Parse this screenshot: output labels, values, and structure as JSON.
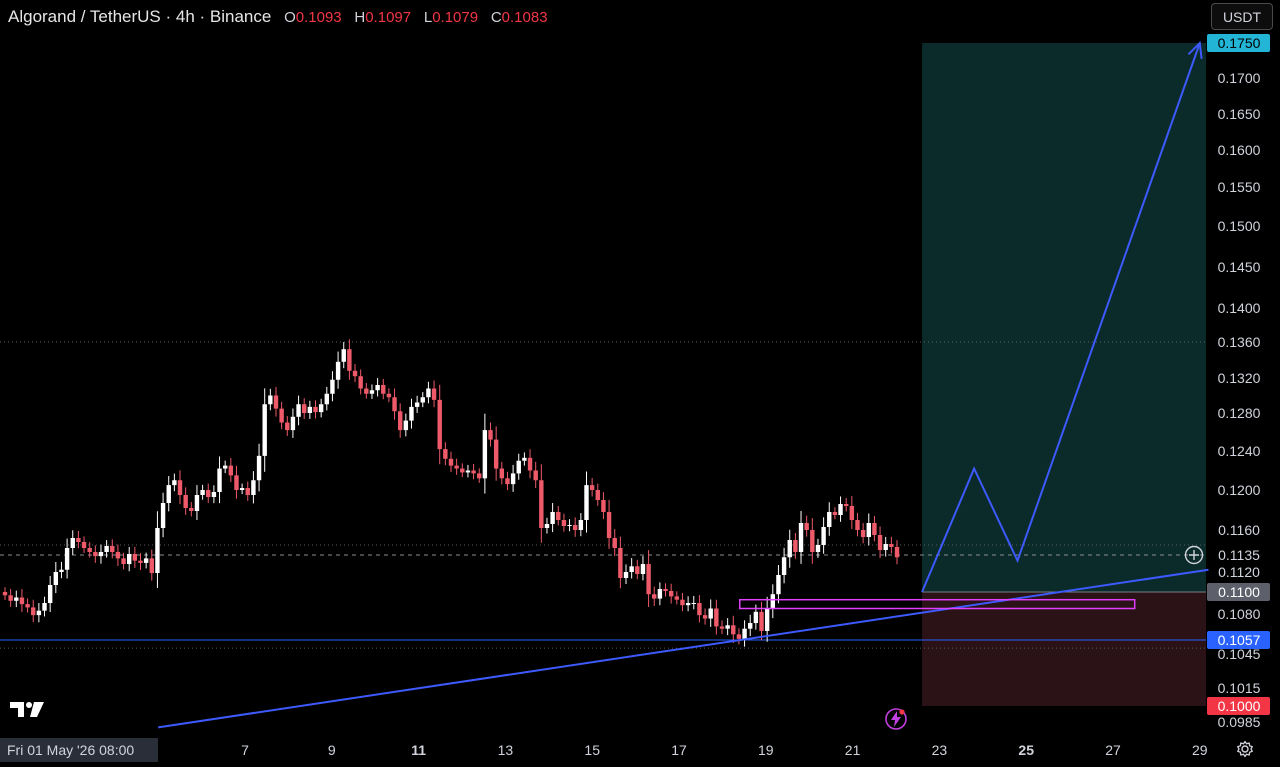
{
  "header": {
    "title": "Algorand / TetherUS · 4h · Binance",
    "o_label": "O",
    "o_value": "0.1093",
    "h_label": "H",
    "h_value": "0.1097",
    "l_label": "L",
    "l_value": "0.1079",
    "c_label": "C",
    "c_value": "0.1083"
  },
  "currency_button": "USDT",
  "cursor_date": "Fri 01 May '26   08:00",
  "icons": {
    "logo": "tradingview-logo-icon",
    "settings": "gear-icon",
    "alert": "lightning-icon",
    "add": "plus-circle-icon"
  },
  "colors": {
    "up": "#ffffff",
    "down": "#ef5a6a",
    "accent_blue": "#3d5afe",
    "profit_zone": "#0b2a2a",
    "loss_zone": "#2a1216",
    "target_tag": "#22b5d6",
    "stop_tag": "#f23645",
    "support_tag": "#2962ff",
    "entry_tag": "#5d606b",
    "box": "#e040fb"
  },
  "chart_data": {
    "type": "candlestick",
    "symbol": "Algorand / TetherUS",
    "interval": "4h",
    "exchange": "Binance",
    "x_ticks": [
      {
        "label": "7",
        "day": 7
      },
      {
        "label": "9",
        "day": 9
      },
      {
        "label": "11",
        "day": 11,
        "bold": true
      },
      {
        "label": "13",
        "day": 13
      },
      {
        "label": "15",
        "day": 15
      },
      {
        "label": "17",
        "day": 17
      },
      {
        "label": "19",
        "day": 19
      },
      {
        "label": "21",
        "day": 21
      },
      {
        "label": "23",
        "day": 23
      },
      {
        "label": "25",
        "day": 25,
        "bold": true
      },
      {
        "label": "27",
        "day": 27
      },
      {
        "label": "29",
        "day": 29
      }
    ],
    "y_ticks": [
      "0.1700",
      "0.1650",
      "0.1600",
      "0.1550",
      "0.1500",
      "0.1450",
      "0.1400",
      "0.1360",
      "0.1320",
      "0.1280",
      "0.1240",
      "0.1200",
      "0.1160",
      "0.1120",
      "0.1080",
      "0.1045",
      "0.1015",
      "0.0985"
    ],
    "price_tags": [
      {
        "label": "0.1750",
        "kind": "target"
      },
      {
        "label": "0.1135",
        "kind": "current"
      },
      {
        "label": "0.1100",
        "kind": "entry"
      },
      {
        "label": "0.1057",
        "kind": "support"
      },
      {
        "label": "0.1000",
        "kind": "stop"
      }
    ],
    "closes": [
      0.1097,
      0.1092,
      0.1095,
      0.1089,
      0.1086,
      0.1079,
      0.1083,
      0.109,
      0.1107,
      0.112,
      0.1122,
      0.1142,
      0.1152,
      0.1148,
      0.1142,
      0.1138,
      0.1134,
      0.1138,
      0.1144,
      0.1138,
      0.1132,
      0.1127,
      0.1136,
      0.113,
      0.1128,
      0.1132,
      0.1119,
      0.1162,
      0.1187,
      0.1205,
      0.121,
      0.1195,
      0.1182,
      0.1179,
      0.1195,
      0.12,
      0.1193,
      0.1198,
      0.1222,
      0.1225,
      0.1215,
      0.12,
      0.1202,
      0.1195,
      0.121,
      0.1235,
      0.129,
      0.13,
      0.1285,
      0.127,
      0.1262,
      0.1276,
      0.129,
      0.128,
      0.1287,
      0.1281,
      0.129,
      0.1302,
      0.1318,
      0.1338,
      0.1352,
      0.1328,
      0.1322,
      0.1308,
      0.1302,
      0.1306,
      0.1312,
      0.1302,
      0.1298,
      0.1282,
      0.1262,
      0.1272,
      0.1287,
      0.1292,
      0.1298,
      0.1308,
      0.1295,
      0.1242,
      0.1232,
      0.1225,
      0.1222,
      0.1218,
      0.122,
      0.1217,
      0.1212,
      0.1262,
      0.1252,
      0.1222,
      0.1212,
      0.1206,
      0.1217,
      0.123,
      0.1233,
      0.122,
      0.121,
      0.1162,
      0.1166,
      0.1178,
      0.117,
      0.1164,
      0.1165,
      0.116,
      0.117,
      0.1205,
      0.12,
      0.119,
      0.1178,
      0.1152,
      0.1142,
      0.1114,
      0.112,
      0.1125,
      0.1118,
      0.1127,
      0.1098,
      0.1094,
      0.1103,
      0.1101,
      0.1096,
      0.1093,
      0.1088,
      0.109,
      0.109,
      0.1079,
      0.1076,
      0.1085,
      0.1069,
      0.1067,
      0.107,
      0.1062,
      0.1058,
      0.1067,
      0.1072,
      0.1082,
      0.1065,
      0.1085,
      0.1098,
      0.1117,
      0.1133,
      0.115,
      0.1138,
      0.1167,
      0.116,
      0.1138,
      0.1145,
      0.1163,
      0.1178,
      0.1175,
      0.1186,
      0.1184,
      0.117,
      0.116,
      0.1153,
      0.1167,
      0.1155,
      0.114,
      0.1146,
      0.1143,
      0.1133
    ],
    "support_level": 0.1057,
    "resistance_level": 0.136,
    "current_price": 0.1135,
    "position": {
      "entry": 0.11,
      "target": 0.175,
      "stop": 0.1,
      "start_day": 22.6,
      "end_day": 29.2
    },
    "trendline": {
      "from": {
        "day": 5.0,
        "price": 0.098
      },
      "to": {
        "day": 29.2,
        "price": 0.1122
      }
    },
    "zone_box": {
      "from_day": 18.4,
      "to_day": 27.5,
      "top": 0.1093,
      "bottom": 0.1085
    },
    "projection_path": [
      {
        "day": 22.6,
        "price": 0.11
      },
      {
        "day": 23.8,
        "price": 0.1222
      },
      {
        "day": 24.8,
        "price": 0.113
      },
      {
        "day": 29.0,
        "price": 0.175
      }
    ]
  }
}
